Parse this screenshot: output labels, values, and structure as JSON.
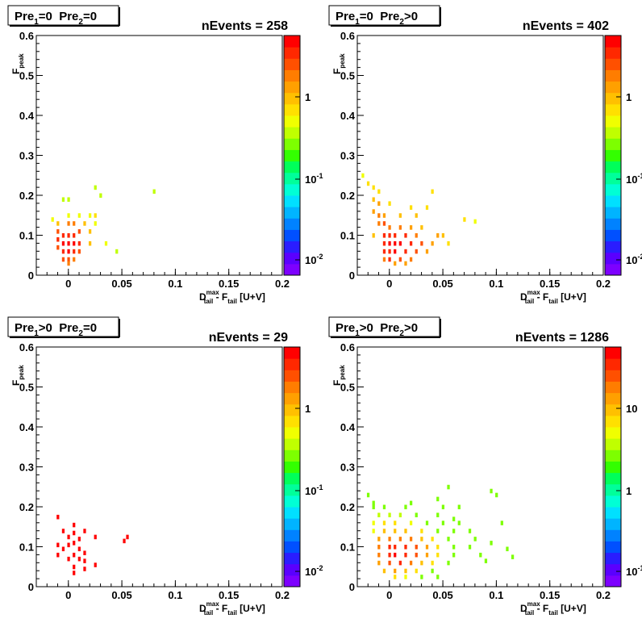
{
  "panels": [
    {
      "title": {
        "pre1": "Pre",
        "pre1_sub": "1",
        "pre1_op": "=0",
        "pre2": "Pre",
        "pre2_sub": "2",
        "pre2_op": "=0"
      },
      "nevents": "nEvents = 258",
      "colorbar": [
        {
          "label": "1",
          "sup": ""
        },
        {
          "label": "10",
          "sup": "-1"
        },
        {
          "label": "10",
          "sup": "-2"
        }
      ]
    },
    {
      "title": {
        "pre1": "Pre",
        "pre1_sub": "1",
        "pre1_op": "=0",
        "pre2": "Pre",
        "pre2_sub": "2",
        "pre2_op": ">0"
      },
      "nevents": "nEvents = 402",
      "colorbar": [
        {
          "label": "1",
          "sup": ""
        },
        {
          "label": "10",
          "sup": "-1"
        },
        {
          "label": "10",
          "sup": "-2"
        }
      ]
    },
    {
      "title": {
        "pre1": "Pre",
        "pre1_sub": "1",
        "pre1_op": ">0",
        "pre2": "Pre",
        "pre2_sub": "2",
        "pre2_op": "=0"
      },
      "nevents": "nEvents = 29",
      "colorbar": [
        {
          "label": "1",
          "sup": ""
        },
        {
          "label": "10",
          "sup": "-1"
        },
        {
          "label": "10",
          "sup": "-2"
        }
      ]
    },
    {
      "title": {
        "pre1": "Pre",
        "pre1_sub": "1",
        "pre1_op": ">0",
        "pre2": "Pre",
        "pre2_sub": "2",
        "pre2_op": ">0"
      },
      "nevents": "nEvents = 1286",
      "colorbar": [
        {
          "label": "10",
          "sup": ""
        },
        {
          "label": "1",
          "sup": ""
        },
        {
          "label": "10",
          "sup": "-1"
        }
      ]
    }
  ],
  "axis_labels": {
    "x_main": "D",
    "x_sup": "max",
    "x_sub": "tail",
    "x_rest": " - F",
    "x_sub2": "tail",
    "x_units": " [U+V]",
    "y_main": "F",
    "y_sub": "peak"
  },
  "chart_data": [
    {
      "type": "heatmap",
      "title": "Pre1=0  Pre2=0",
      "nevents": 258,
      "xlim": [
        -0.03,
        0.2
      ],
      "ylim": [
        0,
        0.6
      ],
      "x_ticks": [
        "0",
        "0.05",
        "0.1",
        "0.15",
        "0.2"
      ],
      "y_ticks": [
        "0",
        "0.1",
        "0.2",
        "0.3",
        "0.4",
        "0.5",
        "0.6"
      ],
      "z_scale": "log",
      "colorbar_ticks": [
        "1",
        "10^-1",
        "10^-2"
      ],
      "cells": [
        [
          -0.005,
          0.19,
          0.4
        ],
        [
          0.0,
          0.19,
          0.4
        ],
        [
          0.025,
          0.22,
          0.4
        ],
        [
          0.08,
          0.21,
          0.4
        ],
        [
          0.03,
          0.2,
          0.4
        ],
        [
          -0.015,
          0.14,
          0.5
        ],
        [
          0.0,
          0.15,
          0.5
        ],
        [
          0.01,
          0.15,
          0.5
        ],
        [
          0.02,
          0.15,
          0.5
        ],
        [
          0.025,
          0.15,
          0.6
        ],
        [
          -0.01,
          0.13,
          1.0
        ],
        [
          0.0,
          0.13,
          1.5
        ],
        [
          0.005,
          0.13,
          1.5
        ],
        [
          0.015,
          0.13,
          1.0
        ],
        [
          0.025,
          0.13,
          0.5
        ],
        [
          -0.01,
          0.11,
          2.0
        ],
        [
          -0.005,
          0.1,
          3.0
        ],
        [
          0.0,
          0.1,
          3.0
        ],
        [
          0.005,
          0.1,
          3.0
        ],
        [
          0.01,
          0.11,
          2.0
        ],
        [
          0.02,
          0.11,
          1.0
        ],
        [
          -0.01,
          0.09,
          3.0
        ],
        [
          -0.005,
          0.08,
          4.0
        ],
        [
          0.0,
          0.08,
          4.0
        ],
        [
          0.005,
          0.08,
          4.0
        ],
        [
          0.01,
          0.08,
          3.0
        ],
        [
          0.02,
          0.08,
          1.0
        ],
        [
          0.035,
          0.08,
          0.5
        ],
        [
          -0.01,
          0.07,
          2.0
        ],
        [
          -0.005,
          0.06,
          3.0
        ],
        [
          0.0,
          0.06,
          4.0
        ],
        [
          0.005,
          0.06,
          3.0
        ],
        [
          0.01,
          0.06,
          2.0
        ],
        [
          0.045,
          0.06,
          0.4
        ],
        [
          -0.005,
          0.04,
          2.0
        ],
        [
          0.0,
          0.04,
          2.5
        ],
        [
          0.005,
          0.04,
          1.5
        ],
        [
          0.0,
          0.03,
          1.5
        ]
      ]
    },
    {
      "type": "heatmap",
      "title": "Pre1=0  Pre2>0",
      "nevents": 402,
      "xlim": [
        -0.03,
        0.2
      ],
      "ylim": [
        0,
        0.6
      ],
      "x_ticks": [
        "0",
        "0.05",
        "0.1",
        "0.15",
        "0.2"
      ],
      "y_ticks": [
        "0",
        "0.1",
        "0.2",
        "0.3",
        "0.4",
        "0.5",
        "0.6"
      ],
      "z_scale": "log",
      "colorbar_ticks": [
        "1",
        "10^-1",
        "10^-2"
      ],
      "cells": [
        [
          -0.025,
          0.25,
          0.4
        ],
        [
          -0.02,
          0.23,
          0.5
        ],
        [
          -0.015,
          0.22,
          0.5
        ],
        [
          -0.01,
          0.21,
          0.6
        ],
        [
          0.04,
          0.21,
          0.5
        ],
        [
          -0.015,
          0.19,
          0.8
        ],
        [
          -0.01,
          0.18,
          1.0
        ],
        [
          0.0,
          0.18,
          0.6
        ],
        [
          0.02,
          0.17,
          0.6
        ],
        [
          0.035,
          0.17,
          0.5
        ],
        [
          -0.015,
          0.16,
          1.0
        ],
        [
          -0.01,
          0.15,
          1.5
        ],
        [
          -0.005,
          0.15,
          1.0
        ],
        [
          0.01,
          0.15,
          0.8
        ],
        [
          0.025,
          0.15,
          0.8
        ],
        [
          0.07,
          0.14,
          0.5
        ],
        [
          0.08,
          0.135,
          0.4
        ],
        [
          -0.01,
          0.13,
          1.5
        ],
        [
          -0.005,
          0.13,
          2.0
        ],
        [
          0.0,
          0.12,
          1.5
        ],
        [
          0.01,
          0.12,
          1.5
        ],
        [
          0.02,
          0.12,
          1.0
        ],
        [
          0.03,
          0.12,
          0.8
        ],
        [
          -0.005,
          0.1,
          2.5
        ],
        [
          0.0,
          0.1,
          3.0
        ],
        [
          0.005,
          0.1,
          3.0
        ],
        [
          0.015,
          0.1,
          2.5
        ],
        [
          0.025,
          0.1,
          1.5
        ],
        [
          0.045,
          0.1,
          1.0
        ],
        [
          0.05,
          0.1,
          0.8
        ],
        [
          -0.015,
          0.1,
          0.8
        ],
        [
          -0.005,
          0.08,
          3.0
        ],
        [
          0.0,
          0.08,
          3.5
        ],
        [
          0.005,
          0.08,
          3.5
        ],
        [
          0.01,
          0.08,
          3.5
        ],
        [
          0.02,
          0.08,
          3.0
        ],
        [
          0.03,
          0.08,
          2.0
        ],
        [
          0.04,
          0.08,
          1.0
        ],
        [
          0.055,
          0.08,
          0.5
        ],
        [
          -0.005,
          0.06,
          2.5
        ],
        [
          0.0,
          0.06,
          3.0
        ],
        [
          0.005,
          0.06,
          3.5
        ],
        [
          0.015,
          0.06,
          3.0
        ],
        [
          0.025,
          0.06,
          2.0
        ],
        [
          0.035,
          0.06,
          1.0
        ],
        [
          -0.005,
          0.04,
          1.5
        ],
        [
          0.0,
          0.04,
          2.5
        ],
        [
          0.01,
          0.04,
          2.0
        ],
        [
          0.02,
          0.04,
          1.5
        ],
        [
          0.005,
          0.03,
          1.0
        ],
        [
          0.015,
          0.03,
          1.0
        ]
      ]
    },
    {
      "type": "heatmap",
      "title": "Pre1>0  Pre2=0",
      "nevents": 29,
      "xlim": [
        -0.03,
        0.2
      ],
      "ylim": [
        0,
        0.6
      ],
      "x_ticks": [
        "0",
        "0.05",
        "0.1",
        "0.15",
        "0.2"
      ],
      "y_ticks": [
        "0",
        "0.1",
        "0.2",
        "0.3",
        "0.4",
        "0.5",
        "0.6"
      ],
      "z_scale": "log",
      "colorbar_ticks": [
        "1",
        "10^-1",
        "10^-2"
      ],
      "cells": [
        [
          -0.01,
          0.175,
          3.0
        ],
        [
          0.005,
          0.155,
          3.0
        ],
        [
          -0.005,
          0.14,
          3.0
        ],
        [
          0.005,
          0.135,
          3.0
        ],
        [
          0.015,
          0.14,
          3.0
        ],
        [
          0.0,
          0.125,
          3.0
        ],
        [
          0.01,
          0.12,
          3.0
        ],
        [
          0.025,
          0.125,
          3.0
        ],
        [
          0.055,
          0.125,
          3.0
        ],
        [
          0.052,
          0.115,
          3.0
        ],
        [
          -0.01,
          0.105,
          3.0
        ],
        [
          0.0,
          0.105,
          3.0
        ],
        [
          0.005,
          0.11,
          3.0
        ],
        [
          -0.005,
          0.095,
          3.0
        ],
        [
          0.01,
          0.095,
          3.0
        ],
        [
          -0.01,
          0.08,
          3.0
        ],
        [
          0.005,
          0.08,
          3.0
        ],
        [
          0.015,
          0.085,
          3.0
        ],
        [
          0.0,
          0.07,
          3.0
        ],
        [
          0.01,
          0.07,
          3.0
        ],
        [
          0.015,
          0.065,
          3.0
        ],
        [
          0.025,
          0.055,
          3.0
        ],
        [
          0.005,
          0.05,
          3.0
        ],
        [
          0.015,
          0.045,
          3.0
        ],
        [
          0.005,
          0.035,
          3.0
        ]
      ]
    },
    {
      "type": "heatmap",
      "title": "Pre1>0  Pre2>0",
      "nevents": 1286,
      "xlim": [
        -0.03,
        0.2
      ],
      "ylim": [
        0,
        0.6
      ],
      "x_ticks": [
        "0",
        "0.05",
        "0.1",
        "0.15",
        "0.2"
      ],
      "y_ticks": [
        "0",
        "0.1",
        "0.2",
        "0.3",
        "0.4",
        "0.5",
        "0.6"
      ],
      "z_scale": "log",
      "colorbar_ticks": [
        "10",
        "1",
        "10^-1"
      ],
      "cells": [
        [
          -0.02,
          0.23,
          1.0
        ],
        [
          -0.015,
          0.21,
          1.0
        ],
        [
          0.02,
          0.21,
          1.0
        ],
        [
          0.055,
          0.25,
          1.0
        ],
        [
          0.095,
          0.24,
          1.0
        ],
        [
          0.1,
          0.23,
          1.0
        ],
        [
          -0.015,
          0.2,
          1.0
        ],
        [
          -0.005,
          0.2,
          1.0
        ],
        [
          0.015,
          0.2,
          1.0
        ],
        [
          0.045,
          0.22,
          1.0
        ],
        [
          0.05,
          0.2,
          1.0
        ],
        [
          0.065,
          0.2,
          1.0
        ],
        [
          -0.01,
          0.18,
          1.2
        ],
        [
          0.0,
          0.18,
          1.2
        ],
        [
          0.01,
          0.18,
          1.2
        ],
        [
          0.025,
          0.18,
          1.0
        ],
        [
          0.045,
          0.18,
          1.0
        ],
        [
          0.06,
          0.17,
          1.0
        ],
        [
          -0.015,
          0.16,
          1.5
        ],
        [
          -0.005,
          0.16,
          2.0
        ],
        [
          0.005,
          0.16,
          2.0
        ],
        [
          0.02,
          0.16,
          1.5
        ],
        [
          0.035,
          0.16,
          1.0
        ],
        [
          0.05,
          0.16,
          1.0
        ],
        [
          0.065,
          0.16,
          1.0
        ],
        [
          0.105,
          0.16,
          1.0
        ],
        [
          -0.015,
          0.14,
          1.5
        ],
        [
          -0.005,
          0.14,
          3.0
        ],
        [
          0.005,
          0.14,
          3.0
        ],
        [
          0.015,
          0.14,
          3.0
        ],
        [
          0.03,
          0.14,
          2.0
        ],
        [
          0.045,
          0.14,
          1.0
        ],
        [
          0.06,
          0.14,
          1.0
        ],
        [
          0.075,
          0.14,
          1.0
        ],
        [
          -0.01,
          0.12,
          4.0
        ],
        [
          0.0,
          0.12,
          6.0
        ],
        [
          0.01,
          0.12,
          6.0
        ],
        [
          0.02,
          0.12,
          5.0
        ],
        [
          0.03,
          0.12,
          3.0
        ],
        [
          0.04,
          0.12,
          2.0
        ],
        [
          0.055,
          0.12,
          1.0
        ],
        [
          0.08,
          0.12,
          1.0
        ],
        [
          0.095,
          0.11,
          1.0
        ],
        [
          -0.01,
          0.1,
          5.0
        ],
        [
          0.0,
          0.1,
          10.0
        ],
        [
          0.005,
          0.1,
          12.0
        ],
        [
          0.015,
          0.1,
          10.0
        ],
        [
          0.025,
          0.1,
          8.0
        ],
        [
          0.035,
          0.1,
          4.0
        ],
        [
          0.045,
          0.1,
          2.0
        ],
        [
          0.06,
          0.1,
          1.0
        ],
        [
          0.075,
          0.1,
          1.0
        ],
        [
          0.11,
          0.095,
          1.0
        ],
        [
          -0.01,
          0.08,
          5.0
        ],
        [
          0.0,
          0.08,
          12.0
        ],
        [
          0.005,
          0.08,
          14.0
        ],
        [
          0.015,
          0.08,
          12.0
        ],
        [
          0.025,
          0.08,
          8.0
        ],
        [
          0.035,
          0.08,
          4.0
        ],
        [
          0.045,
          0.08,
          2.0
        ],
        [
          0.06,
          0.08,
          1.0
        ],
        [
          0.085,
          0.08,
          1.0
        ],
        [
          0.115,
          0.075,
          1.0
        ],
        [
          -0.01,
          0.06,
          4.0
        ],
        [
          0.0,
          0.06,
          8.0
        ],
        [
          0.01,
          0.06,
          10.0
        ],
        [
          0.02,
          0.06,
          6.0
        ],
        [
          0.03,
          0.06,
          3.0
        ],
        [
          0.04,
          0.06,
          2.0
        ],
        [
          0.055,
          0.06,
          1.0
        ],
        [
          0.09,
          0.065,
          1.0
        ],
        [
          -0.005,
          0.04,
          3.0
        ],
        [
          0.005,
          0.04,
          4.0
        ],
        [
          0.015,
          0.04,
          3.0
        ],
        [
          0.025,
          0.04,
          2.0
        ],
        [
          0.04,
          0.04,
          1.0
        ],
        [
          0.005,
          0.025,
          2.0
        ],
        [
          0.015,
          0.025,
          1.5
        ],
        [
          0.03,
          0.025,
          1.0
        ],
        [
          0.045,
          0.025,
          1.0
        ]
      ]
    }
  ]
}
